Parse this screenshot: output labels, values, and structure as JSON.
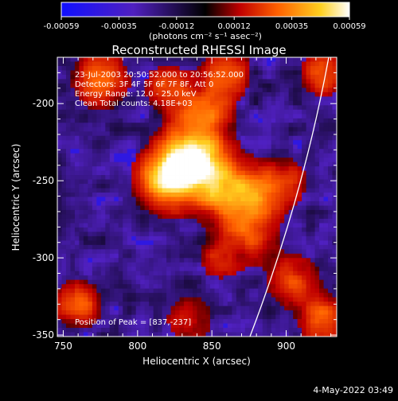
{
  "colorbar": {
    "tick_labels": [
      "-0.00059",
      "-0.00035",
      "-0.00012",
      "0.00012",
      "0.00035",
      "0.00059"
    ],
    "range": [
      -0.00059,
      0.00059
    ],
    "unit_label": "(photons cm⁻² s⁻¹ asec⁻²)",
    "stops": [
      "#1010ff",
      "#5020c0",
      "#000000",
      "#c00000",
      "#ff6000",
      "#ffd020",
      "#ffffff"
    ]
  },
  "chart_data": {
    "type": "heatmap",
    "title": "Reconstructed RHESSI Image",
    "xlabel": "Heliocentric X (arcsec)",
    "ylabel": "Heliocentric Y (arcsec)",
    "xlim": [
      746,
      934
    ],
    "ylim": [
      -351,
      -170
    ],
    "x_ticks": [
      750,
      800,
      850,
      900
    ],
    "y_ticks": [
      -200,
      -250,
      -300,
      -350
    ],
    "peak": [
      837,
      -237
    ],
    "info_lines": [
      "23-Jul-2003 20:50:52.000 to 20:56:52.000",
      "Detectors: 3F 4F 5F 6F 7F 8F, Att 0",
      "Energy Range: 12.0 - 25.0 keV",
      "Clean    Total counts: 4.18E+03"
    ],
    "peak_label": "Position of Peak = [837,-237]"
  },
  "footer": {
    "date": "4-May-2022 03:49"
  }
}
